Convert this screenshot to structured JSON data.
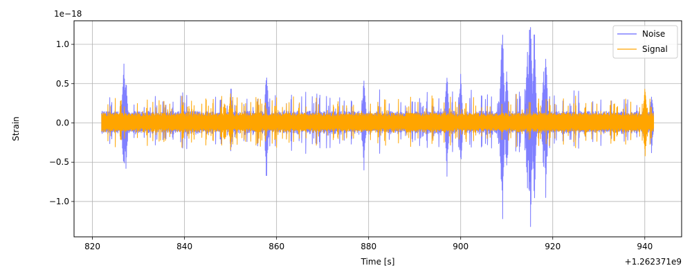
{
  "chart_data": {
    "type": "line",
    "title": "",
    "xlabel": "Time [s]",
    "ylabel": "Strain",
    "x_offset_label": "+1.262371e9",
    "y_scale_label": "1e−18",
    "x_ticks": [
      820,
      840,
      860,
      880,
      900,
      920,
      940
    ],
    "x_tick_labels": [
      "820",
      "840",
      "860",
      "880",
      "900",
      "920",
      "940"
    ],
    "y_ticks": [
      -1.0,
      -0.5,
      0.0,
      0.5,
      1.0
    ],
    "y_tick_labels": [
      "−1.0",
      "−0.5",
      "0.0",
      "0.5",
      "1.0"
    ],
    "xlim": [
      816,
      948
    ],
    "ylim": [
      -1.45,
      1.3
    ],
    "grid": true,
    "legend_position": "top-right",
    "series": [
      {
        "name": "Noise",
        "color": "#8080ff",
        "x_range": [
          822,
          942
        ],
        "typical_amplitude": 0.12,
        "burst_peaks": [
          {
            "x": 826.8,
            "y": 0.75
          },
          {
            "x": 827.3,
            "y": -0.58
          },
          {
            "x": 850.1,
            "y": 0.43
          },
          {
            "x": 857.8,
            "y": -0.67
          },
          {
            "x": 879.0,
            "y": -0.6
          },
          {
            "x": 897.0,
            "y": -0.68
          },
          {
            "x": 900.0,
            "y": 0.62
          },
          {
            "x": 908.9,
            "y": 0.99
          },
          {
            "x": 909.1,
            "y": -1.22
          },
          {
            "x": 910.0,
            "y": 0.65
          },
          {
            "x": 914.5,
            "y": 0.9
          },
          {
            "x": 915.0,
            "y": 1.18
          },
          {
            "x": 915.2,
            "y": -1.32
          },
          {
            "x": 916.0,
            "y": 1.12
          },
          {
            "x": 918.0,
            "y": 0.65
          },
          {
            "x": 918.5,
            "y": -0.95
          },
          {
            "x": 940.0,
            "y": 0.36
          },
          {
            "x": 941.5,
            "y": -0.38
          }
        ]
      },
      {
        "name": "Signal",
        "color": "#ffa500",
        "x_range": [
          822,
          942
        ],
        "typical_amplitude": 0.1,
        "burst_peaks": [
          {
            "x": 850.0,
            "y": 0.37
          },
          {
            "x": 850.1,
            "y": -0.28
          },
          {
            "x": 940.0,
            "y": 0.43
          },
          {
            "x": 940.1,
            "y": -0.42
          }
        ]
      }
    ]
  }
}
